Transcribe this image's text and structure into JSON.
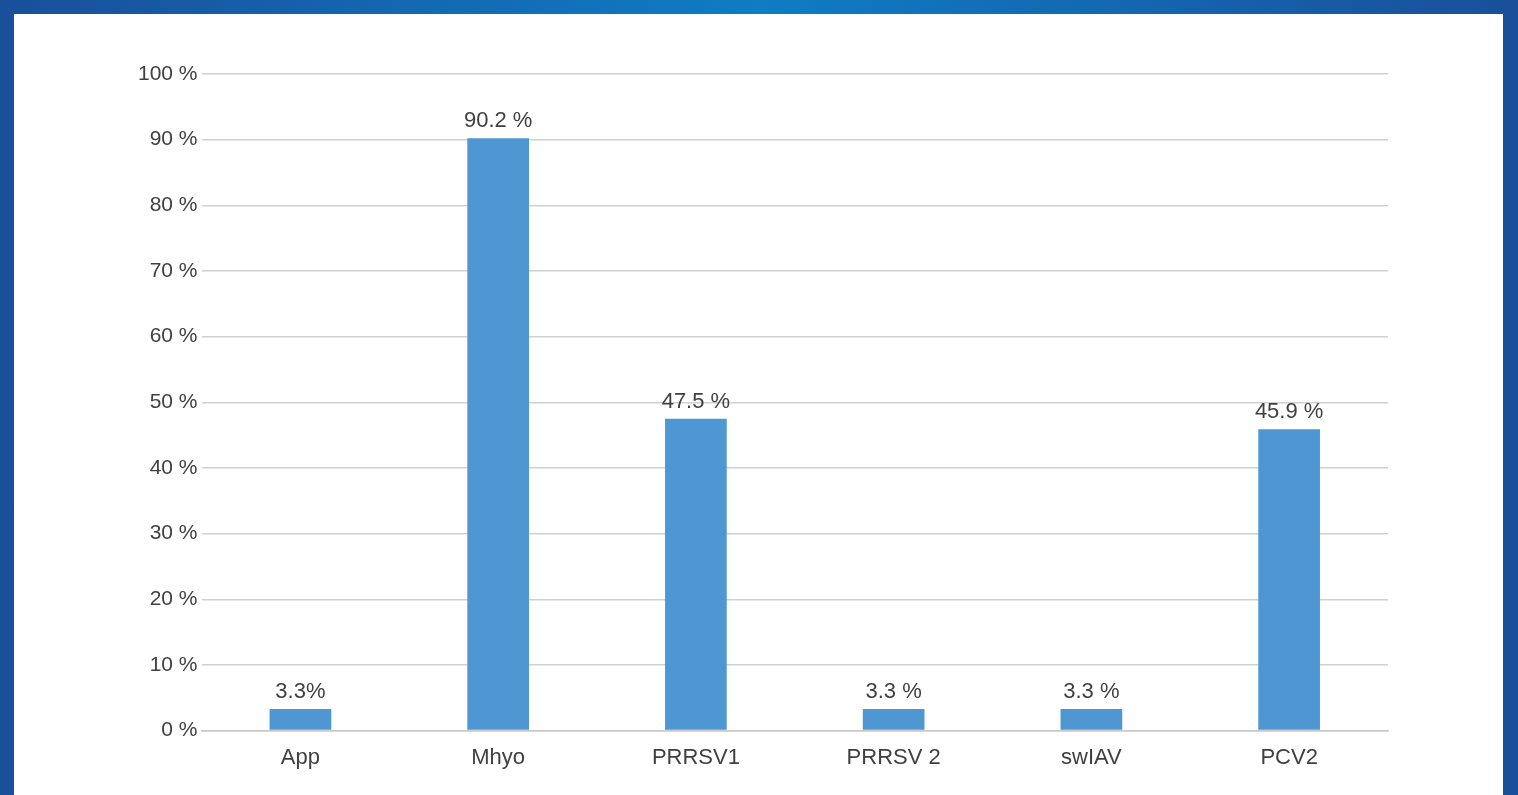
{
  "chart_data": {
    "type": "bar",
    "categories": [
      "App",
      "Mhyo",
      "PRRSV1",
      "PRRSV 2",
      "swIAV",
      "PCV2"
    ],
    "values": [
      3.3,
      90.2,
      47.5,
      3.3,
      3.3,
      45.9
    ],
    "value_labels": [
      "3.3%",
      "90.2 %",
      "47.5 %",
      "3.3 %",
      "3.3 %",
      "45.9 %"
    ],
    "color": "#4f97d3",
    "ylim": [
      0,
      100
    ],
    "yticks": [
      {
        "value": 0,
        "label": "0 %"
      },
      {
        "value": 10,
        "label": "10 %"
      },
      {
        "value": 20,
        "label": "20 %"
      },
      {
        "value": 30,
        "label": "30 %"
      },
      {
        "value": 40,
        "label": "40 %"
      },
      {
        "value": 50,
        "label": "50 %"
      },
      {
        "value": 60,
        "label": "60 %"
      },
      {
        "value": 70,
        "label": "70 %"
      },
      {
        "value": 80,
        "label": "80 %"
      },
      {
        "value": 90,
        "label": "90 %"
      },
      {
        "value": 100,
        "label": "100 %"
      }
    ],
    "grid": "y"
  }
}
